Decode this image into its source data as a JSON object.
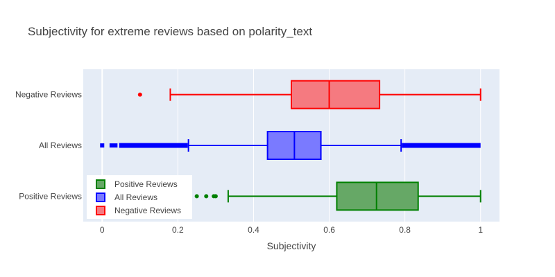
{
  "chart_data": {
    "type": "box",
    "orientation": "horizontal",
    "title": "Subjectivity for extreme reviews based on polarity_text",
    "xlabel": "Subjectivity",
    "ylabel": "",
    "xlim": [
      -0.05,
      1.05
    ],
    "xticks": [
      0,
      0.2,
      0.4,
      0.6,
      0.8,
      1
    ],
    "xtick_labels": [
      "0",
      "0.2",
      "0.4",
      "0.6",
      "0.8",
      "1"
    ],
    "grid": true,
    "legend_position": "bottom-left",
    "series": [
      {
        "name": "Positive Reviews",
        "category": "Positive Reviews",
        "color": "#008000",
        "fill": "#66a866",
        "whisker_low": 0.333,
        "q1": 0.62,
        "median": 0.725,
        "q3": 0.835,
        "whisker_high": 1.0,
        "outliers": [
          0.25,
          0.275,
          0.295,
          0.3
        ]
      },
      {
        "name": "All Reviews",
        "category": "All Reviews",
        "color": "#0000ff",
        "fill": "#7a7aff",
        "whisker_low": 0.228,
        "q1": 0.437,
        "median": 0.508,
        "q3": 0.578,
        "whisker_high": 0.79,
        "outliers_low_points": [
          0.0,
          0.025,
          0.03,
          0.035
        ],
        "outliers_low_range": [
          0.045,
          0.226
        ],
        "outliers_high_range": [
          0.792,
          1.0
        ]
      },
      {
        "name": "Negative Reviews",
        "category": "Negative Reviews",
        "color": "#ff0000",
        "fill": "#f57a80",
        "whisker_low": 0.18,
        "q1": 0.5,
        "median": 0.6,
        "q3": 0.733,
        "whisker_high": 1.0,
        "outliers": [
          0.1
        ]
      }
    ]
  }
}
